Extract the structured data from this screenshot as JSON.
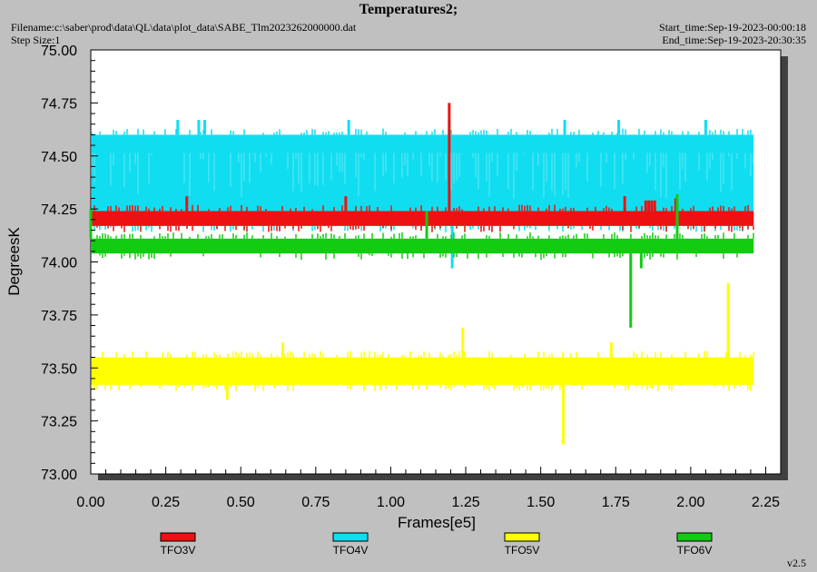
{
  "header": {
    "title": "Temperatures2;",
    "filename": "Filename:c:\\saber\\prod\\data\\QL\\data\\plot_data\\SABE_Tlm2023262000000.dat",
    "step_size": "Step Size:1",
    "start_time": "Start_time:Sep-19-2023-00:00:18",
    "end_time": "End_time:Sep-19-2023-20:30:35"
  },
  "footer": {
    "version": "v2.5"
  },
  "chart_data": {
    "type": "line",
    "title": "Temperatures2;",
    "xlabel": "Frames[e5]",
    "ylabel": "DegreesK",
    "xlim": [
      0,
      2.3
    ],
    "ylim": [
      73.0,
      75.0
    ],
    "xticks": [
      "0.00",
      "0.25",
      "0.50",
      "0.75",
      "1.00",
      "1.25",
      "1.50",
      "1.75",
      "2.00",
      "2.25"
    ],
    "yticks": [
      "73.00",
      "73.25",
      "73.50",
      "73.75",
      "74.00",
      "74.25",
      "74.50",
      "74.75",
      "75.00"
    ],
    "grid": false,
    "legend_position": "bottom",
    "series": [
      {
        "name": "TFO3V",
        "color": "#ee1111",
        "band": [
          74.17,
          74.24
        ],
        "x_range": [
          0.0,
          2.21
        ],
        "spikes": [
          [
            0.32,
            74.31
          ],
          [
            0.85,
            74.31
          ],
          [
            1.195,
            74.75
          ],
          [
            1.78,
            74.31
          ],
          [
            1.85,
            74.29
          ],
          [
            1.86,
            74.29
          ],
          [
            1.87,
            74.29
          ],
          [
            1.88,
            74.29
          ],
          [
            1.95,
            74.3
          ]
        ]
      },
      {
        "name": "TFO4V",
        "color": "#11ddf0",
        "band": [
          74.17,
          74.6
        ],
        "x_range": [
          0.0,
          2.21
        ],
        "spikes": [
          [
            0.29,
            74.67
          ],
          [
            0.36,
            74.67
          ],
          [
            0.38,
            74.67
          ],
          [
            0.86,
            74.67
          ],
          [
            1.195,
            74.67
          ],
          [
            1.205,
            73.97
          ],
          [
            1.58,
            74.67
          ],
          [
            1.76,
            74.67
          ],
          [
            2.05,
            74.67
          ]
        ]
      },
      {
        "name": "TFO5V",
        "color": "#ffff00",
        "band": [
          73.42,
          73.55
        ],
        "x_range": [
          0.0,
          2.21
        ],
        "spikes": [
          [
            0.455,
            73.35
          ],
          [
            0.64,
            73.62
          ],
          [
            1.24,
            73.69
          ],
          [
            1.575,
            73.14
          ],
          [
            1.735,
            73.62
          ],
          [
            2.125,
            73.9
          ]
        ]
      },
      {
        "name": "TFO6V",
        "color": "#11cc11",
        "band": [
          74.04,
          74.11
        ],
        "x_range": [
          0.0,
          2.21
        ],
        "spikes": [
          [
            0.0,
            74.25
          ],
          [
            1.12,
            74.24
          ],
          [
            1.8,
            73.69
          ],
          [
            1.835,
            73.97
          ],
          [
            1.955,
            74.32
          ]
        ]
      }
    ]
  }
}
